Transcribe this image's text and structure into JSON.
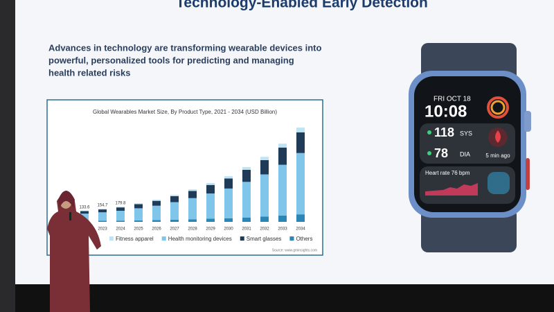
{
  "slide": {
    "title": "Technology-Enabled Early Detection",
    "body": [
      "Advances in technology are transforming wearable devices into",
      "powerful, personalized tools for predicting and managing",
      "health related risks"
    ]
  },
  "chart_data": {
    "type": "bar",
    "stacked": true,
    "title": "Global Wearables Market Size, By Product Type, 2021 - 2034 (USD Billion)",
    "source": "Source: www.gminsights.com",
    "categories": [
      null,
      "2023",
      "2024",
      "2025",
      "2026",
      "2027",
      "2028",
      "2029",
      "2030",
      "2031",
      "2032",
      "2033",
      "2034"
    ],
    "totals": [
      133.6,
      154.7,
      179.8
    ],
    "series": [
      {
        "name": "Others",
        "color": "#2a86b4",
        "values": [
          10.7,
          12.4,
          14.4,
          17.6,
          21,
          25.6,
          30.8,
          36.8,
          43.2,
          51.8,
          61.6,
          74,
          89
        ]
      },
      {
        "name": "Health monitoring devices",
        "color": "#80c6ea",
        "values": [
          86.8,
          100.6,
          116.9,
          143,
          170,
          208,
          250,
          299,
          351,
          421,
          500,
          601,
          725
        ]
      },
      {
        "name": "Smart glasses",
        "color": "#1f3b58",
        "values": [
          29.4,
          34,
          39.6,
          48.4,
          57.6,
          70.4,
          84.7,
          101,
          119,
          143,
          169,
          204,
          245
        ]
      },
      {
        "name": "Fitness apparel",
        "color": "#bfe4f5",
        "values": [
          6.7,
          7.7,
          8.9,
          11,
          13.1,
          16,
          19.3,
          23,
          27,
          32.4,
          38.5,
          46,
          56
        ]
      }
    ],
    "legend_order": [
      3,
      1,
      2,
      0
    ]
  },
  "watch": {
    "date": "FRI OCT 18",
    "time": "10:08",
    "sys_value": "118",
    "sys_label": "SYS",
    "dia_value": "78",
    "dia_label": "DIA",
    "ago": "5 min ago",
    "heart": "Heart rate 76 bpm"
  }
}
